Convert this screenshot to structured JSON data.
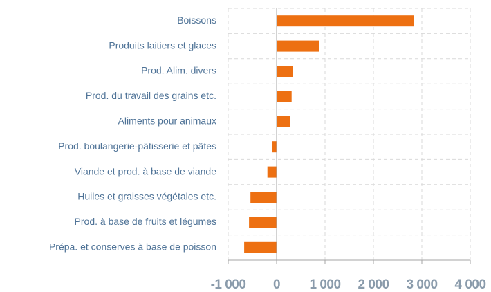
{
  "chart_data": {
    "type": "bar",
    "orientation": "horizontal",
    "categories": [
      "Boissons",
      "Produits laitiers et glaces",
      "Prod. Alim. divers",
      "Prod. du travail des grains etc.",
      "Aliments pour animaux",
      "Prod. boulangerie-pâtisserie et pâtes",
      "Viande et prod. à base de viande",
      "Huiles et graisses végétales etc.",
      "Prod. à base de fruits et légumes",
      "Prépa. et conserves à base de poisson"
    ],
    "values": [
      2830,
      880,
      340,
      310,
      280,
      -100,
      -190,
      -540,
      -570,
      -670
    ],
    "color": "#ed7012",
    "xlim": [
      -1000,
      4000
    ],
    "xticks": [
      {
        "value": -1000,
        "label": "-1 000"
      },
      0,
      {
        "value": 1000,
        "label": "1 000"
      },
      {
        "value": 2000,
        "label": "2 000"
      },
      {
        "value": 3000,
        "label": "3 000"
      },
      {
        "value": 4000,
        "label": "4 000"
      }
    ],
    "grid": true
  }
}
